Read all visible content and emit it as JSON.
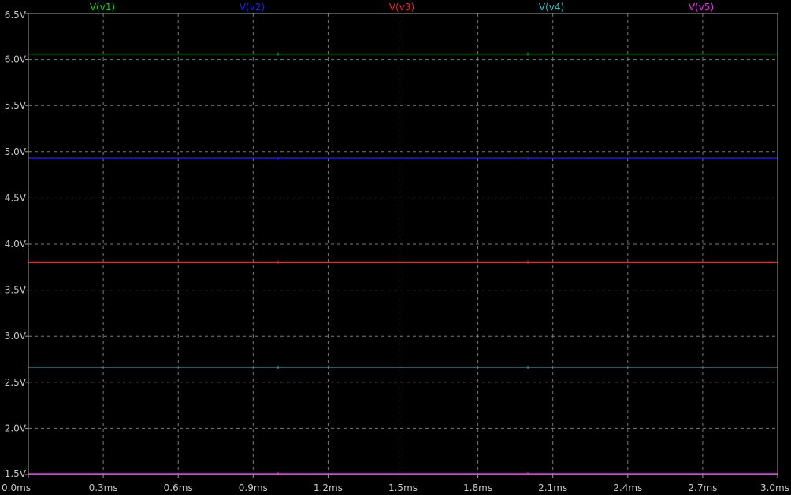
{
  "chart_data": {
    "type": "line",
    "title": "",
    "xlabel": "",
    "ylabel": "",
    "xlim": [
      0.0,
      3.0
    ],
    "ylim": [
      1.5,
      6.5
    ],
    "grid": true,
    "legend_placement": "top",
    "background": "#000000",
    "frame_color": "#a0a0a0",
    "x_ticks": [
      "0.0ms",
      "0.3ms",
      "0.6ms",
      "0.9ms",
      "1.2ms",
      "1.5ms",
      "1.8ms",
      "2.1ms",
      "2.4ms",
      "2.7ms",
      "3.0ms"
    ],
    "x_tick_values": [
      0.0,
      0.3,
      0.6,
      0.9,
      1.2,
      1.5,
      1.8,
      2.1,
      2.4,
      2.7,
      3.0
    ],
    "y_ticks": [
      "1.5V",
      "2.0V",
      "2.5V",
      "3.0V",
      "3.5V",
      "4.0V",
      "4.5V",
      "5.0V",
      "5.5V",
      "6.0V",
      "6.5V"
    ],
    "y_tick_values": [
      1.5,
      2.0,
      2.5,
      3.0,
      3.5,
      4.0,
      4.5,
      5.0,
      5.5,
      6.0,
      6.5
    ],
    "series": [
      {
        "name": "V(v1)",
        "color": "#00e000",
        "x": [
          0.0,
          3.0
        ],
        "values": [
          6.06,
          6.06
        ]
      },
      {
        "name": "V(v2)",
        "color": "#2020ff",
        "x": [
          0.0,
          3.0
        ],
        "values": [
          4.93,
          4.93
        ]
      },
      {
        "name": "V(v3)",
        "color": "#ff2020",
        "x": [
          0.0,
          3.0
        ],
        "values": [
          3.8,
          3.8
        ]
      },
      {
        "name": "V(v4)",
        "color": "#20c8c8",
        "x": [
          0.0,
          3.0
        ],
        "values": [
          2.66,
          2.66
        ]
      },
      {
        "name": "V(v5)",
        "color": "#ff20ff",
        "x": [
          0.0,
          3.0
        ],
        "values": [
          1.51,
          1.51
        ]
      }
    ]
  }
}
